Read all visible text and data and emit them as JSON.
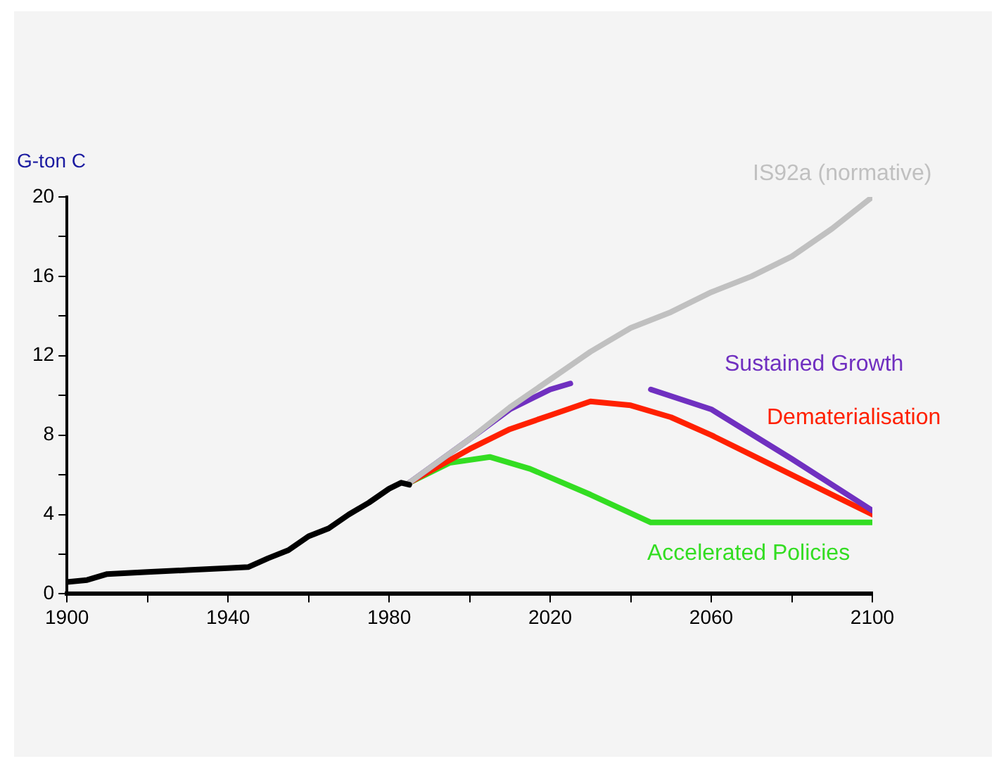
{
  "chart_data": {
    "type": "line",
    "ylabel": "G-ton C",
    "xlim": [
      1900,
      2100
    ],
    "ylim": [
      0,
      20
    ],
    "xticks": [
      1900,
      {
        "value": 1920,
        "label": null
      },
      1940,
      {
        "value": 1960,
        "label": null
      },
      1980,
      {
        "value": 2000,
        "label": null
      },
      2020,
      {
        "value": 2040,
        "label": null
      },
      2060,
      {
        "value": 2080,
        "label": null
      },
      2100
    ],
    "yticks": [
      0,
      {
        "value": 2,
        "label": null
      },
      4,
      {
        "value": 6,
        "label": null
      },
      8,
      {
        "value": 10,
        "label": null
      },
      12,
      {
        "value": 14,
        "label": null
      },
      16,
      {
        "value": 18,
        "label": null
      },
      20
    ],
    "grid": false,
    "legend": false,
    "marker": "none",
    "line_style": "solid",
    "series": [
      {
        "color": "#000000",
        "x": [
          1900,
          1905,
          1910,
          1920,
          1930,
          1940,
          1945,
          1950,
          1955,
          1960,
          1965,
          1970,
          1975,
          1980,
          1983,
          1985
        ],
        "values": [
          0.6,
          0.7,
          1.0,
          1.1,
          1.2,
          1.3,
          1.35,
          1.8,
          2.2,
          2.9,
          3.3,
          4.0,
          4.6,
          5.3,
          5.6,
          5.5
        ]
      },
      {
        "name": "IS92a (normative)",
        "color": "#c0c0c0",
        "x": [
          1985,
          2000,
          2010,
          2020,
          2030,
          2040,
          2050,
          2060,
          2070,
          2080,
          2090,
          2100
        ],
        "values": [
          5.6,
          7.8,
          9.4,
          10.8,
          12.2,
          13.4,
          14.2,
          15.2,
          16.0,
          17.0,
          18.4,
          20.0
        ]
      },
      {
        "name": "Sustained Growth",
        "color": "#7030c0",
        "x": [
          1985,
          2000,
          2010,
          2020,
          2025,
          2035,
          2045,
          2060,
          2080,
          2100
        ],
        "values": [
          5.6,
          7.8,
          9.3,
          10.3,
          10.6,
          null,
          10.3,
          9.3,
          6.8,
          4.2
        ]
      },
      {
        "name": "Dematerialisation",
        "color": "#ff2000",
        "x": [
          1985,
          2000,
          2010,
          2020,
          2030,
          2040,
          2050,
          2060,
          2070,
          2080,
          2090,
          2100
        ],
        "values": [
          5.6,
          7.3,
          8.3,
          9.0,
          9.7,
          9.5,
          8.9,
          8.0,
          7.0,
          6.0,
          5.0,
          4.0
        ]
      },
      {
        "name": "Accelerated Policies",
        "color": "#33dd22",
        "x": [
          1985,
          1995,
          2005,
          2015,
          2030,
          2045,
          2100
        ],
        "values": [
          5.6,
          6.6,
          6.9,
          6.3,
          5.0,
          3.6,
          3.6
        ]
      }
    ]
  }
}
